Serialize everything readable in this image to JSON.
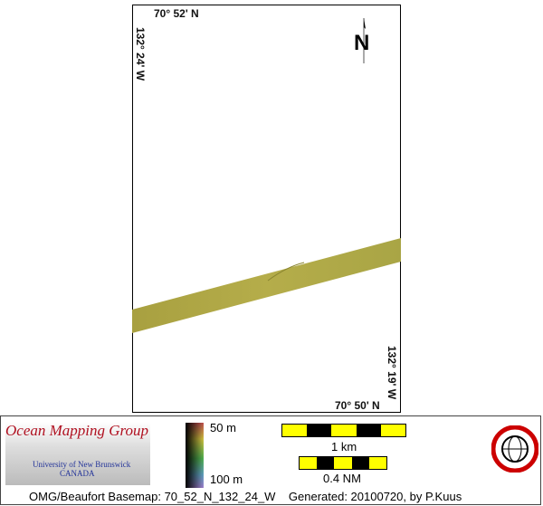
{
  "map": {
    "lat_top": "70° 52' N",
    "lat_bottom": "70° 50' N",
    "lon_left": "132° 24' W",
    "lon_right": "132° 19' W",
    "north_label": "N"
  },
  "legend": {
    "depth_min": "50 m",
    "depth_max": "100 m"
  },
  "scale": {
    "km": "1 km",
    "nm": "0.4 NM",
    "colors": [
      "#ffff00",
      "#000000"
    ]
  },
  "logo": {
    "title": "Ocean Mapping Group",
    "university": "University of New Brunswick",
    "country": "CANADA"
  },
  "footer_caption": "OMG/Beaufort Basemap: 70_52_N_132_24_W    Generated: 20100720, by P.Kuus"
}
